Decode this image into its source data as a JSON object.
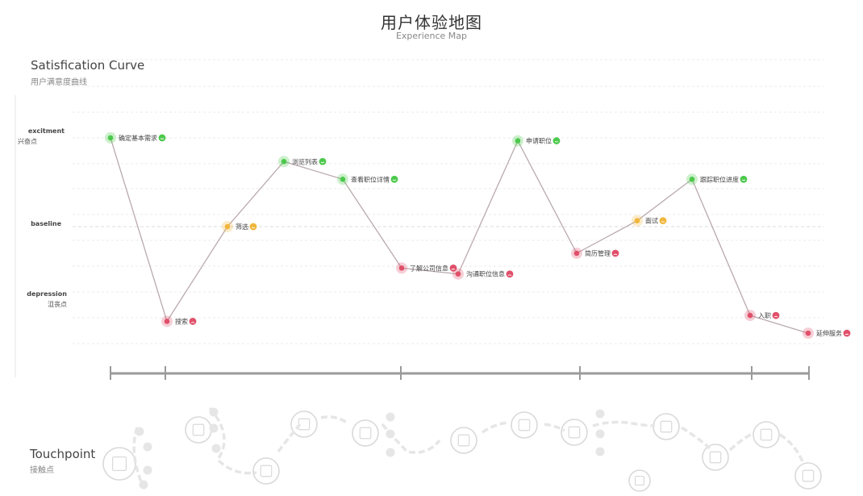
{
  "header": {
    "title": "用户体验地图",
    "subtitle": "Experience Map"
  },
  "curve_section": {
    "title": "Satisfication Curve",
    "subtitle": "用户满意度曲线"
  },
  "touchpoint_section": {
    "title": "Touchpoint",
    "subtitle": "接触点"
  },
  "levels": {
    "excitement": {
      "label": "excitment",
      "sub": "兴奋点"
    },
    "baseline": {
      "label": "baseline"
    },
    "depression": {
      "label": "depression",
      "sub": "沮丧点"
    }
  },
  "colors": {
    "positive": "#4cc94c",
    "neutral": "#f0b63c",
    "negative": "#e0506a",
    "line": "#b9a9ad"
  },
  "chart_data": {
    "type": "line",
    "y_scale": "satisfaction: 0 = baseline, +3 = excitement, -3 = depression",
    "ylim": [
      -3.6,
      3.0
    ],
    "points": [
      {
        "label": "确定基本需求",
        "y": 3.0,
        "mood": "positive"
      },
      {
        "label": "搜索",
        "y": -3.2,
        "mood": "negative"
      },
      {
        "label": "筛选",
        "y": 0.0,
        "mood": "neutral"
      },
      {
        "label": "浏览列表",
        "y": 2.2,
        "mood": "positive"
      },
      {
        "label": "查看职位详情",
        "y": 1.6,
        "mood": "positive"
      },
      {
        "label": "了解公司信息",
        "y": -1.4,
        "mood": "negative"
      },
      {
        "label": "沟通职位信息",
        "y": -1.6,
        "mood": "negative"
      },
      {
        "label": "申请职位",
        "y": 2.9,
        "mood": "positive"
      },
      {
        "label": "简历管理",
        "y": -0.9,
        "mood": "negative"
      },
      {
        "label": "面试",
        "y": 0.2,
        "mood": "neutral"
      },
      {
        "label": "跟踪职位进度",
        "y": 1.6,
        "mood": "positive"
      },
      {
        "label": "入职",
        "y": -3.0,
        "mood": "negative"
      },
      {
        "label": "延伸服务",
        "y": -3.6,
        "mood": "negative"
      }
    ]
  }
}
